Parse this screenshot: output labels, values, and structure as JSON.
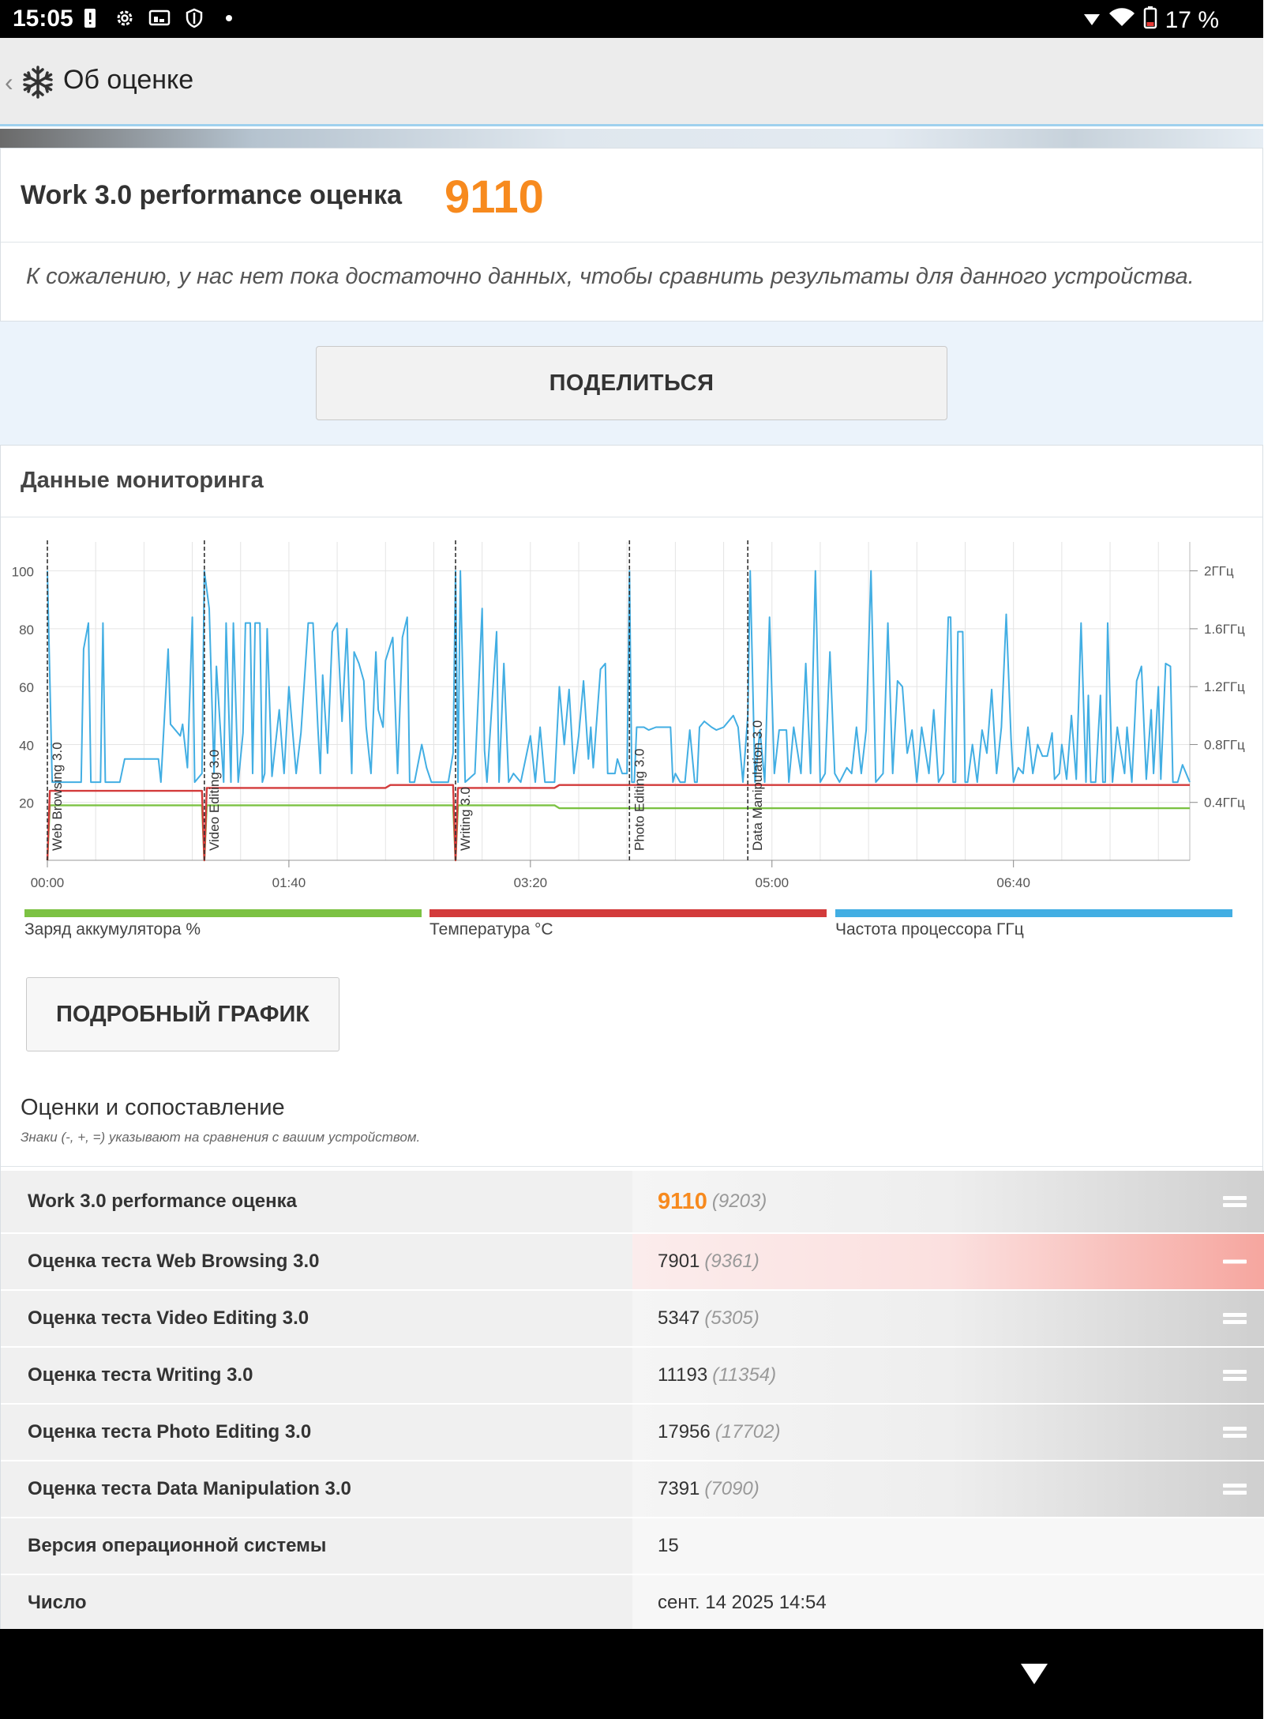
{
  "status_bar": {
    "time": "15:05",
    "battery_text": "17 %",
    "icons": [
      "alert-icon",
      "gear-icon",
      "cast-icon",
      "shield-icon",
      "dot-icon"
    ]
  },
  "app_bar": {
    "back_glyph": "‹",
    "title": "Об оценке"
  },
  "score": {
    "label": "Work 3.0 performance оценка",
    "value": "9110",
    "note": "К сожалению, у нас нет пока достаточно данных, чтобы сравнить результаты для данного устройства."
  },
  "share_button": "ПОДЕЛИТЬСЯ",
  "monitoring": {
    "title": "Данные мониторинга",
    "detail_button": "ПОДРОБНЫЙ ГРАФИК",
    "legend": [
      {
        "label": "Заряд аккумулятора %",
        "color": "#7cc243"
      },
      {
        "label": "Температура °C",
        "color": "#d33b3b"
      },
      {
        "label": "Частота процессора ГГц",
        "color": "#42aee3"
      }
    ]
  },
  "chart_data": {
    "type": "line",
    "x_unit": "seconds",
    "xlim": [
      0,
      473
    ],
    "ylim_left": [
      0,
      110
    ],
    "ylim_right_ghz": [
      0,
      2.2
    ],
    "x_ticks": [
      {
        "t": 0,
        "label": "00:00"
      },
      {
        "t": 100,
        "label": "01:40"
      },
      {
        "t": 200,
        "label": "03:20"
      },
      {
        "t": 300,
        "label": "05:00"
      },
      {
        "t": 400,
        "label": "06:40"
      }
    ],
    "y_ticks_left": [
      20,
      40,
      60,
      80,
      100
    ],
    "y_ticks_right": [
      {
        "v": 0.4,
        "label": "0.4ГГц"
      },
      {
        "v": 0.8,
        "label": "0.8ГГц"
      },
      {
        "v": 1.2,
        "label": "1.2ГГц"
      },
      {
        "v": 1.6,
        "label": "1.6ГГц"
      },
      {
        "v": 2.0,
        "label": "2ГГц"
      }
    ],
    "grid": true,
    "markers": [
      {
        "t": 0,
        "label": "Web Browsing 3.0"
      },
      {
        "t": 65,
        "label": "Video Editing 3.0"
      },
      {
        "t": 169,
        "label": "Writing 3.0"
      },
      {
        "t": 241,
        "label": "Photo Editing 3.0"
      },
      {
        "t": 290,
        "label": "Data Manipulation 3.0"
      }
    ],
    "series": [
      {
        "name": "Заряд аккумулятора %",
        "color": "#7cc243",
        "points": [
          [
            0,
            0
          ],
          [
            1,
            19
          ],
          [
            64,
            19
          ],
          [
            65,
            0
          ],
          [
            66,
            19
          ],
          [
            168,
            19
          ],
          [
            169,
            0
          ],
          [
            170,
            19
          ],
          [
            210,
            19
          ],
          [
            212,
            18
          ],
          [
            473,
            18
          ]
        ]
      },
      {
        "name": "Температура °C",
        "color": "#d33b3b",
        "points": [
          [
            0,
            0
          ],
          [
            1,
            24
          ],
          [
            64,
            24
          ],
          [
            65,
            0
          ],
          [
            66,
            25
          ],
          [
            140,
            25
          ],
          [
            142,
            26
          ],
          [
            168,
            26
          ],
          [
            169,
            0
          ],
          [
            170,
            25
          ],
          [
            210,
            25
          ],
          [
            212,
            26
          ],
          [
            473,
            26
          ]
        ]
      },
      {
        "name": "Частота процессора ГГц",
        "color": "#42aee3",
        "points": [
          [
            0,
            100
          ],
          [
            2,
            27
          ],
          [
            14,
            27
          ],
          [
            15,
            73
          ],
          [
            17,
            82
          ],
          [
            18,
            27
          ],
          [
            22,
            27
          ],
          [
            23,
            82
          ],
          [
            24,
            27
          ],
          [
            30,
            27
          ],
          [
            32,
            35
          ],
          [
            46,
            35
          ],
          [
            47,
            27
          ],
          [
            50,
            73
          ],
          [
            51,
            47
          ],
          [
            55,
            43
          ],
          [
            56,
            47
          ],
          [
            58,
            32
          ],
          [
            60,
            84
          ],
          [
            61,
            27
          ],
          [
            64,
            30
          ],
          [
            65,
            100
          ],
          [
            67,
            87
          ],
          [
            69,
            30
          ],
          [
            70,
            67
          ],
          [
            73,
            27
          ],
          [
            74,
            82
          ],
          [
            76,
            27
          ],
          [
            77,
            82
          ],
          [
            79,
            27
          ],
          [
            81,
            44
          ],
          [
            82,
            82
          ],
          [
            84,
            82
          ],
          [
            85,
            30
          ],
          [
            86,
            82
          ],
          [
            88,
            82
          ],
          [
            89,
            27
          ],
          [
            90,
            30
          ],
          [
            91,
            80
          ],
          [
            93,
            29
          ],
          [
            96,
            52
          ],
          [
            98,
            30
          ],
          [
            100,
            60
          ],
          [
            103,
            30
          ],
          [
            105,
            44
          ],
          [
            108,
            82
          ],
          [
            110,
            82
          ],
          [
            112,
            46
          ],
          [
            113,
            30
          ],
          [
            114,
            64
          ],
          [
            116,
            37
          ],
          [
            118,
            79
          ],
          [
            120,
            82
          ],
          [
            122,
            48
          ],
          [
            124,
            80
          ],
          [
            126,
            30
          ],
          [
            127,
            72
          ],
          [
            129,
            68
          ],
          [
            131,
            62
          ],
          [
            132,
            46
          ],
          [
            134,
            30
          ],
          [
            136,
            72
          ],
          [
            137,
            52
          ],
          [
            139,
            46
          ],
          [
            140,
            69
          ],
          [
            143,
            77
          ],
          [
            145,
            30
          ],
          [
            147,
            77
          ],
          [
            149,
            84
          ],
          [
            150,
            27
          ],
          [
            152,
            27
          ],
          [
            155,
            40
          ],
          [
            157,
            32
          ],
          [
            159,
            27
          ],
          [
            166,
            27
          ],
          [
            168,
            37
          ],
          [
            169,
            100
          ],
          [
            170,
            27
          ],
          [
            171,
            100
          ],
          [
            173,
            27
          ],
          [
            177,
            30
          ],
          [
            180,
            87
          ],
          [
            181,
            38
          ],
          [
            182,
            27
          ],
          [
            186,
            79
          ],
          [
            187,
            27
          ],
          [
            189,
            68
          ],
          [
            191,
            27
          ],
          [
            193,
            30
          ],
          [
            196,
            27
          ],
          [
            200,
            43
          ],
          [
            202,
            27
          ],
          [
            204,
            46
          ],
          [
            206,
            27
          ],
          [
            210,
            27
          ],
          [
            212,
            60
          ],
          [
            214,
            40
          ],
          [
            216,
            59
          ],
          [
            218,
            30
          ],
          [
            220,
            43
          ],
          [
            222,
            62
          ],
          [
            224,
            35
          ],
          [
            225,
            46
          ],
          [
            226,
            32
          ],
          [
            229,
            66
          ],
          [
            231,
            68
          ],
          [
            232,
            30
          ],
          [
            235,
            30
          ],
          [
            236,
            35
          ],
          [
            238,
            30
          ],
          [
            240,
            30
          ],
          [
            241,
            100
          ],
          [
            242,
            27
          ],
          [
            243,
            27
          ],
          [
            244,
            46
          ],
          [
            247,
            46
          ],
          [
            249,
            45
          ],
          [
            252,
            46
          ],
          [
            258,
            46
          ],
          [
            259,
            27
          ],
          [
            260,
            30
          ],
          [
            262,
            27
          ],
          [
            264,
            27
          ],
          [
            266,
            45
          ],
          [
            268,
            27
          ],
          [
            269,
            27
          ],
          [
            270,
            46
          ],
          [
            272,
            48
          ],
          [
            275,
            46
          ],
          [
            277,
            45
          ],
          [
            280,
            46
          ],
          [
            284,
            50
          ],
          [
            286,
            46
          ],
          [
            288,
            27
          ],
          [
            290,
            50
          ],
          [
            291,
            100
          ],
          [
            293,
            27
          ],
          [
            295,
            45
          ],
          [
            297,
            27
          ],
          [
            299,
            84
          ],
          [
            301,
            30
          ],
          [
            303,
            45
          ],
          [
            306,
            45
          ],
          [
            307,
            27
          ],
          [
            309,
            46
          ],
          [
            312,
            30
          ],
          [
            314,
            68
          ],
          [
            316,
            30
          ],
          [
            318,
            100
          ],
          [
            320,
            27
          ],
          [
            322,
            30
          ],
          [
            324,
            72
          ],
          [
            326,
            30
          ],
          [
            328,
            27
          ],
          [
            331,
            32
          ],
          [
            333,
            30
          ],
          [
            335,
            46
          ],
          [
            337,
            30
          ],
          [
            339,
            45
          ],
          [
            341,
            100
          ],
          [
            343,
            27
          ],
          [
            346,
            30
          ],
          [
            348,
            82
          ],
          [
            350,
            30
          ],
          [
            352,
            62
          ],
          [
            354,
            60
          ],
          [
            356,
            37
          ],
          [
            358,
            45
          ],
          [
            360,
            27
          ],
          [
            362,
            46
          ],
          [
            365,
            30
          ],
          [
            367,
            52
          ],
          [
            369,
            27
          ],
          [
            371,
            30
          ],
          [
            373,
            84
          ],
          [
            374,
            84
          ],
          [
            375,
            27
          ],
          [
            376,
            27
          ],
          [
            377,
            79
          ],
          [
            379,
            79
          ],
          [
            380,
            27
          ],
          [
            381,
            27
          ],
          [
            383,
            40
          ],
          [
            385,
            27
          ],
          [
            387,
            45
          ],
          [
            389,
            37
          ],
          [
            391,
            59
          ],
          [
            393,
            30
          ],
          [
            395,
            46
          ],
          [
            397,
            85
          ],
          [
            399,
            42
          ],
          [
            400,
            27
          ],
          [
            402,
            32
          ],
          [
            404,
            30
          ],
          [
            406,
            46
          ],
          [
            408,
            30
          ],
          [
            410,
            40
          ],
          [
            412,
            36
          ],
          [
            414,
            36
          ],
          [
            416,
            44
          ],
          [
            417,
            28
          ],
          [
            419,
            30
          ],
          [
            420,
            40
          ],
          [
            422,
            28
          ],
          [
            424,
            50
          ],
          [
            426,
            28
          ],
          [
            428,
            82
          ],
          [
            430,
            27
          ],
          [
            431,
            57
          ],
          [
            432,
            27
          ],
          [
            434,
            27
          ],
          [
            436,
            57
          ],
          [
            437,
            27
          ],
          [
            438,
            27
          ],
          [
            439,
            82
          ],
          [
            441,
            27
          ],
          [
            443,
            46
          ],
          [
            444,
            40
          ],
          [
            446,
            30
          ],
          [
            447,
            46
          ],
          [
            449,
            27
          ],
          [
            451,
            62
          ],
          [
            453,
            67
          ],
          [
            455,
            28
          ],
          [
            457,
            52
          ],
          [
            458,
            30
          ],
          [
            460,
            60
          ],
          [
            461,
            28
          ],
          [
            463,
            68
          ],
          [
            465,
            67
          ],
          [
            466,
            27
          ],
          [
            468,
            27
          ],
          [
            470,
            33
          ],
          [
            473,
            27
          ]
        ]
      }
    ]
  },
  "comparison": {
    "title": "Оценки и сопоставление",
    "subtitle": "Знаки (-, +, =) указывают на сравнения с вашим устройством.",
    "rows": [
      {
        "name": "Work 3.0 performance оценка",
        "value": "9110",
        "compare": "(9203)",
        "sign": "equal"
      },
      {
        "name": "Оценка теста Web Browsing 3.0",
        "value": "7901",
        "compare": "(9361)",
        "sign": "minus"
      },
      {
        "name": "Оценка теста Video Editing 3.0",
        "value": "5347",
        "compare": "(5305)",
        "sign": "equal"
      },
      {
        "name": "Оценка теста Writing 3.0",
        "value": "11193",
        "compare": "(11354)",
        "sign": "equal"
      },
      {
        "name": "Оценка теста Photo Editing 3.0",
        "value": "17956",
        "compare": "(17702)",
        "sign": "equal"
      },
      {
        "name": "Оценка теста Data Manipulation 3.0",
        "value": "7391",
        "compare": "(7090)",
        "sign": "equal"
      }
    ],
    "info_rows": [
      {
        "name": "Версия операционной системы",
        "value": "15"
      },
      {
        "name": "Число",
        "value": "сент. 14 2025 14:54"
      }
    ]
  }
}
